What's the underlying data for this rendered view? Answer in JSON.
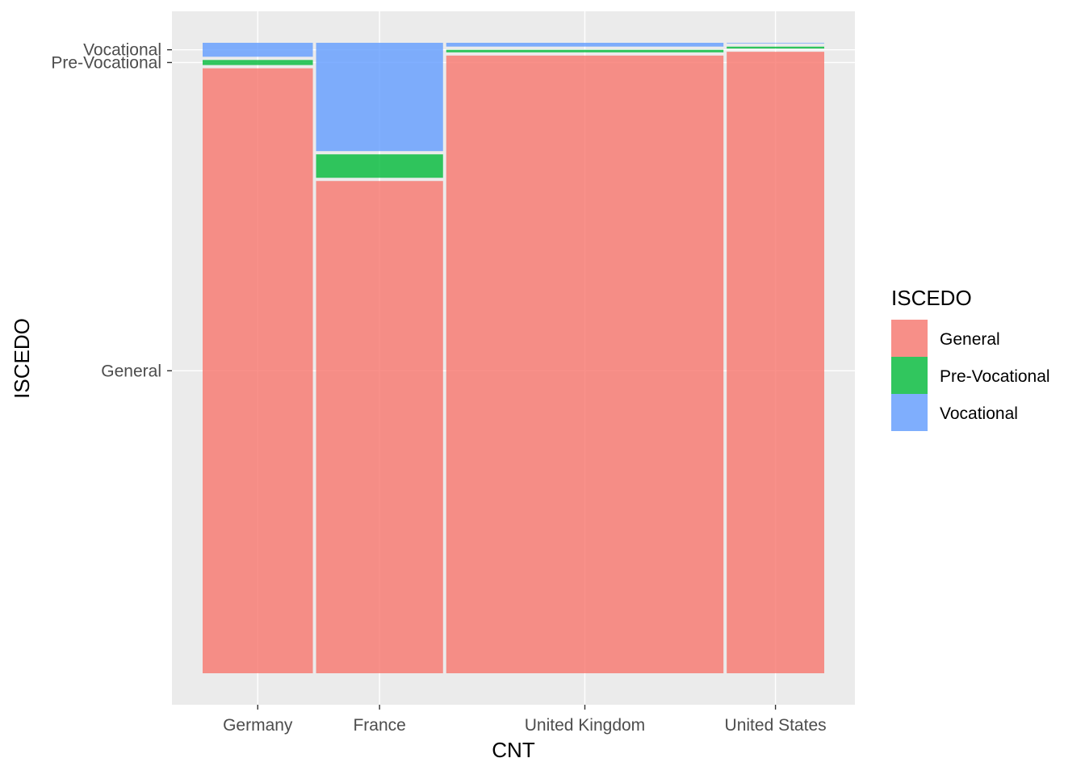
{
  "chart_data": {
    "type": "mosaic",
    "xlabel": "CNT",
    "ylabel": "ISCEDO",
    "categories": [
      "Germany",
      "France",
      "United Kingdom",
      "United States"
    ],
    "levels": [
      "General",
      "Pre-Vocational",
      "Vocational"
    ],
    "y_tick_labels": [
      "General",
      "Pre-Vocational",
      "Vocational"
    ],
    "widths": [
      0.165,
      0.19,
      0.415,
      0.146
    ],
    "series": [
      {
        "name": "General",
        "color": "#F8766D",
        "values": [
          0.953,
          0.777,
          0.977,
          0.982
        ]
      },
      {
        "name": "Pre-Vocational",
        "color": "#00BA38",
        "values": [
          0.008,
          0.037,
          0.004,
          0.003
        ]
      },
      {
        "name": "Vocational",
        "color": "#619CFF",
        "values": [
          0.022,
          0.171,
          0.006,
          0.001
        ]
      }
    ],
    "legend": {
      "title": "ISCEDO",
      "position": "right"
    },
    "grid": true
  }
}
